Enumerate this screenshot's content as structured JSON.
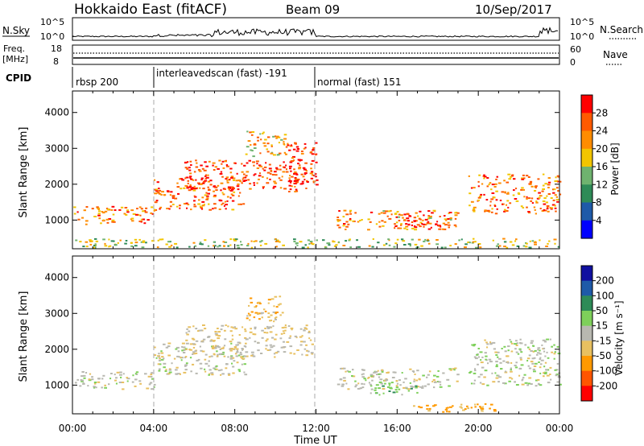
{
  "header": {
    "title": "Hokkaido East (fitACF)",
    "beam": "Beam 09",
    "date": "10/Sep/2017"
  },
  "top_panels": {
    "nsky_label": "N.Sky",
    "nsky_ticks": [
      "10^5",
      "10^0"
    ],
    "nsearch_ticks": [
      "10^5",
      "10^0"
    ],
    "nsearch_label": "N.Search",
    "freq_label": "Freq.",
    "freq_unit": "[MHz]",
    "freq_ticks": [
      "18",
      "8"
    ],
    "nave_ticks": [
      "60",
      "0"
    ],
    "nave_label": "Nave",
    "cpid_label": "CPID",
    "modes": [
      "rbsp 200",
      "interleavedscan (fast) -191",
      "normal (fast) 151"
    ]
  },
  "x_axis": {
    "label": "Time UT",
    "ticks": [
      "00:00",
      "04:00",
      "08:00",
      "12:00",
      "16:00",
      "20:00",
      "00:00"
    ]
  },
  "colors": {
    "power": [
      "#0000ff",
      "#1e5aa8",
      "#2e8b57",
      "#6fb36f",
      "#f2c500",
      "#ff8c00",
      "#ff5a00",
      "#ff0000"
    ],
    "velocity": [
      "#ff0000",
      "#ff5500",
      "#ff9900",
      "#e8c060",
      "#b8b8b0",
      "#7ed05a",
      "#2e8b57",
      "#1e5aa8",
      "#1010a0"
    ],
    "gate_dash": "#aaaaaa"
  },
  "chart_data": [
    {
      "type": "heatmap",
      "title": "",
      "xlabel": "",
      "ylabel": "Slant Range [km]",
      "xlim_hours": [
        0,
        24
      ],
      "ylim_km": [
        200,
        4600
      ],
      "yticks": [
        "1000",
        "2000",
        "3000",
        "4000"
      ],
      "colorbar_label": "Power [dB]",
      "colorbar_ticks": [
        "4",
        "8",
        "12",
        "16",
        "20",
        "24",
        "28"
      ],
      "colorbar_range": [
        0,
        32
      ],
      "regions": [
        {
          "t0": 0.0,
          "t1": 4.0,
          "r0": 900,
          "r1": 1400,
          "level": 0.75
        },
        {
          "t0": 4.0,
          "t1": 8.5,
          "r0": 1300,
          "r1": 2200,
          "level": 0.8
        },
        {
          "t0": 5.5,
          "t1": 11.8,
          "r0": 1800,
          "r1": 2700,
          "level": 0.85
        },
        {
          "t0": 8.5,
          "t1": 10.5,
          "r0": 2800,
          "r1": 3500,
          "level": 0.6
        },
        {
          "t0": 10.5,
          "t1": 12.0,
          "r0": 2000,
          "r1": 3200,
          "level": 0.9
        },
        {
          "t0": 13.0,
          "t1": 19.0,
          "r0": 750,
          "r1": 1300,
          "level": 0.7
        },
        {
          "t0": 16.0,
          "t1": 18.5,
          "r0": 800,
          "r1": 1200,
          "level": 0.9
        },
        {
          "t0": 19.5,
          "t1": 24.0,
          "r0": 1200,
          "r1": 2300,
          "level": 0.75
        },
        {
          "t0": 0.0,
          "t1": 24.0,
          "r0": 250,
          "r1": 500,
          "level": 0.5
        }
      ]
    },
    {
      "type": "heatmap",
      "title": "",
      "xlabel": "Time UT",
      "ylabel": "Slant Range [km]",
      "xlim_hours": [
        0,
        24
      ],
      "ylim_km": [
        200,
        4600
      ],
      "yticks": [
        "1000",
        "2000",
        "3000",
        "4000"
      ],
      "colorbar_label": "Velocity [m s⁻¹]",
      "colorbar_ticks": [
        "200",
        "100",
        "50",
        "15",
        "-15",
        "-50",
        "-100",
        "-200"
      ],
      "colorbar_range": [
        -250,
        250
      ],
      "regions": [
        {
          "t0": 0.0,
          "t1": 4.0,
          "r0": 900,
          "r1": 1400,
          "level": 0.0
        },
        {
          "t0": 4.0,
          "t1": 8.5,
          "r0": 1300,
          "r1": 2200,
          "level": 0.0
        },
        {
          "t0": 5.5,
          "t1": 11.8,
          "r0": 1800,
          "r1": 2700,
          "level": -20
        },
        {
          "t0": 8.5,
          "t1": 10.5,
          "r0": 2800,
          "r1": 3500,
          "level": -40
        },
        {
          "t0": 13.0,
          "t1": 19.0,
          "r0": 900,
          "r1": 1500,
          "level": 0.0
        },
        {
          "t0": 14.5,
          "t1": 17.0,
          "r0": 750,
          "r1": 1100,
          "level": 40
        },
        {
          "t0": 16.5,
          "t1": 21.0,
          "r0": 250,
          "r1": 500,
          "level": -60
        },
        {
          "t0": 19.5,
          "t1": 24.0,
          "r0": 1000,
          "r1": 2300,
          "level": 0.0
        }
      ]
    }
  ]
}
